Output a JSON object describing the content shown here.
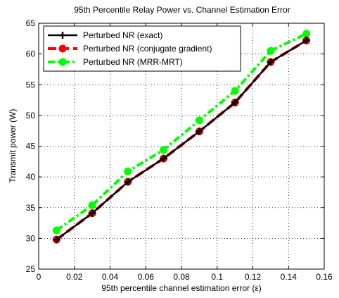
{
  "chart_data": {
    "type": "line",
    "title": "95th Percentile Relay Power vs. Channel Estimation Error",
    "xlabel": "95th percentile channel estimation error (ε)",
    "ylabel": "Transmit power (W)",
    "xlim": [
      0,
      0.16
    ],
    "ylim": [
      25,
      65
    ],
    "xticks": [
      0,
      0.02,
      0.04,
      0.06,
      0.08,
      0.1,
      0.12,
      0.14,
      0.16
    ],
    "xtick_labels": [
      "0",
      "0.02",
      "0.04",
      "0.06",
      "0.08",
      "0.1",
      "0.12",
      "0.14",
      "0.16"
    ],
    "yticks": [
      25,
      30,
      35,
      40,
      45,
      50,
      55,
      60,
      65
    ],
    "ytick_labels": [
      "25",
      "30",
      "35",
      "40",
      "45",
      "50",
      "55",
      "60",
      "65"
    ],
    "grid": true,
    "legend_position": "top-left",
    "x": [
      0.01,
      0.03,
      0.05,
      0.07,
      0.09,
      0.11,
      0.13,
      0.15
    ],
    "series": [
      {
        "name": "Perturbed NR (exact)",
        "values": [
          29.8,
          34.1,
          39.2,
          43.0,
          47.4,
          52.1,
          58.7,
          62.2
        ],
        "color": "#000000",
        "line_style": "solid",
        "marker": "plus"
      },
      {
        "name": "Perturbed NR (conjugate gradient)",
        "values": [
          29.8,
          34.1,
          39.2,
          43.0,
          47.4,
          52.1,
          58.7,
          62.2
        ],
        "color": "#ff0000",
        "line_style": "dashed",
        "marker": "circle"
      },
      {
        "name": "Perturbed NR (MRR-MRT)",
        "values": [
          31.3,
          35.4,
          40.9,
          44.4,
          49.2,
          54.0,
          60.5,
          63.3
        ],
        "color": "#00ff00",
        "line_style": "dashdot",
        "marker": "circle"
      }
    ]
  }
}
